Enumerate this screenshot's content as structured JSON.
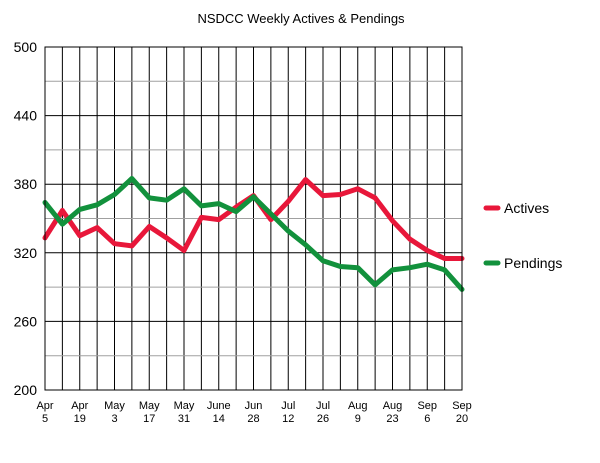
{
  "chart_data": {
    "type": "line",
    "title": "NSDCC Weekly Actives & Pendings",
    "xlabel": "",
    "ylabel": "",
    "ylim": [
      200,
      500
    ],
    "yticks": [
      200,
      260,
      320,
      380,
      440,
      500
    ],
    "grid": true,
    "legend_position": "right",
    "x_tick_labels": [
      [
        "Apr",
        "5"
      ],
      [
        "Apr",
        "19"
      ],
      [
        "May",
        "3"
      ],
      [
        "May",
        "17"
      ],
      [
        "May",
        "31"
      ],
      [
        "June",
        "14"
      ],
      [
        "Jun",
        "28"
      ],
      [
        "Jul",
        "12"
      ],
      [
        "Jul",
        "26"
      ],
      [
        "Aug",
        "9"
      ],
      [
        "Aug",
        "23"
      ],
      [
        "Sep",
        "6"
      ],
      [
        "Sep",
        "20"
      ]
    ],
    "x_count": 25,
    "series": [
      {
        "name": "Actives",
        "color": "#e8173a",
        "values": [
          333,
          357,
          335,
          342,
          328,
          326,
          343,
          333,
          322,
          351,
          349,
          360,
          370,
          349,
          365,
          384,
          370,
          371,
          376,
          368,
          348,
          332,
          322,
          315,
          315
        ]
      },
      {
        "name": "Pendings",
        "color": "#12913c",
        "values": [
          364,
          345,
          358,
          362,
          371,
          385,
          368,
          366,
          376,
          361,
          363,
          356,
          369,
          354,
          339,
          327,
          313,
          308,
          307,
          292,
          305,
          307,
          310,
          305,
          288
        ]
      }
    ]
  }
}
